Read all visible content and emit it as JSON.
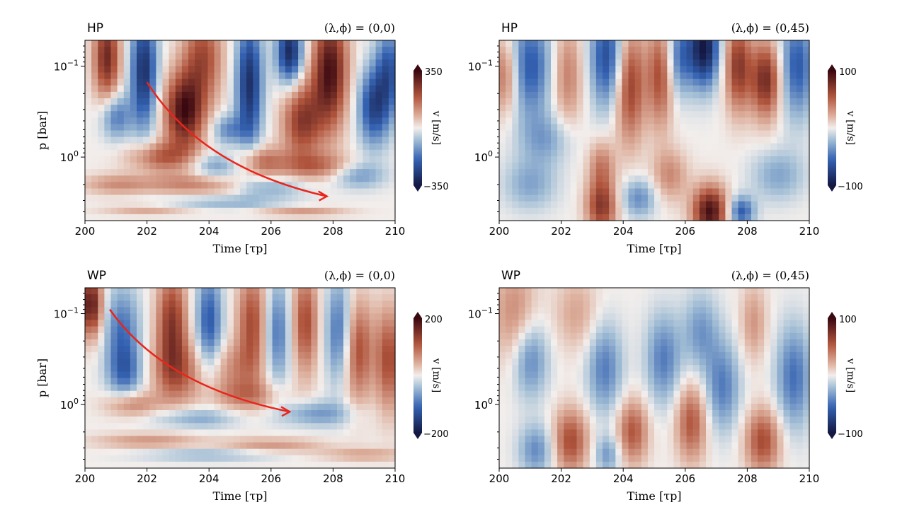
{
  "chart_data": [
    {
      "type": "heatmap",
      "model": "HP",
      "location": "(λ,ϕ) = (0,0)",
      "xlabel": "Time [τp]",
      "ylabel": "p [bar]",
      "xlim": [
        200,
        210
      ],
      "ylim": [
        0.052,
        5.0
      ],
      "yscale": "log",
      "xticks": [
        "200",
        "202",
        "204",
        "206",
        "208",
        "210"
      ],
      "yticks": [
        "10^-1",
        "10^0"
      ],
      "colorbar": {
        "label": "v [m/s]",
        "min": -350,
        "max": 350,
        "ticks": [
          "350",
          "−350"
        ]
      },
      "arrow": {
        "from": [
          202.0,
          0.15
        ],
        "to": [
          207.8,
          2.7
        ]
      },
      "features": [
        [
          200.7,
          -1.1,
          0.8,
          0.3,
          0.35
        ],
        [
          201.0,
          -0.45,
          -0.5,
          0.35,
          0.18
        ],
        [
          201.9,
          -0.95,
          -0.85,
          0.3,
          0.45
        ],
        [
          203.2,
          -0.5,
          0.95,
          0.45,
          0.3
        ],
        [
          203.8,
          -1.1,
          0.6,
          0.45,
          0.35
        ],
        [
          205.3,
          -0.8,
          -0.85,
          0.3,
          0.5
        ],
        [
          204.6,
          -0.3,
          -0.4,
          0.35,
          0.12
        ],
        [
          206.6,
          -1.15,
          -0.9,
          0.3,
          0.25
        ],
        [
          207.0,
          -0.4,
          0.7,
          0.45,
          0.3
        ],
        [
          207.9,
          -0.95,
          0.95,
          0.4,
          0.45
        ],
        [
          209.3,
          -0.55,
          -0.7,
          0.35,
          0.3
        ],
        [
          209.8,
          -0.95,
          -0.6,
          0.3,
          0.35
        ],
        [
          202.4,
          0.0,
          0.5,
          0.7,
          0.12
        ],
        [
          205.6,
          0.05,
          0.5,
          0.6,
          0.12
        ],
        [
          207.5,
          0.1,
          0.4,
          0.8,
          0.1
        ],
        [
          203.5,
          0.3,
          0.35,
          1.2,
          0.08
        ],
        [
          206.0,
          0.33,
          -0.3,
          0.8,
          0.08
        ],
        [
          201.0,
          0.3,
          0.3,
          0.8,
          0.08
        ],
        [
          204.3,
          0.1,
          -0.35,
          0.6,
          0.1
        ],
        [
          208.8,
          0.2,
          -0.35,
          0.6,
          0.1
        ],
        [
          204.5,
          0.5,
          -0.25,
          1.5,
          0.05
        ],
        [
          202.0,
          0.58,
          0.25,
          1.0,
          0.04
        ],
        [
          207.0,
          0.6,
          0.3,
          1.0,
          0.04
        ]
      ]
    },
    {
      "type": "heatmap",
      "model": "HP",
      "location": "(λ,ϕ) = (0,45)",
      "xlabel": "Time [τp]",
      "ylabel": "",
      "xlim": [
        200,
        210
      ],
      "ylim": [
        0.052,
        5.0
      ],
      "yscale": "log",
      "xticks": [
        "200",
        "202",
        "204",
        "206",
        "208",
        "210"
      ],
      "yticks": [
        "10^-1",
        "10^0"
      ],
      "colorbar": {
        "label": "v [m/s]",
        "min": -100,
        "max": 100,
        "ticks": [
          "100",
          "−100"
        ]
      },
      "features": [
        [
          200.2,
          -0.9,
          0.5,
          0.3,
          0.3
        ],
        [
          201.0,
          -1.0,
          -0.6,
          0.5,
          0.4
        ],
        [
          202.2,
          -0.9,
          0.4,
          0.35,
          0.4
        ],
        [
          203.5,
          -1.1,
          -0.7,
          0.4,
          0.4
        ],
        [
          204.2,
          -0.8,
          0.7,
          0.35,
          0.45
        ],
        [
          205.2,
          -0.9,
          0.6,
          0.3,
          0.4
        ],
        [
          205.8,
          -1.1,
          -0.5,
          0.3,
          0.3
        ],
        [
          206.6,
          -1.2,
          -1.0,
          0.35,
          0.3
        ],
        [
          207.7,
          -1.0,
          0.7,
          0.3,
          0.35
        ],
        [
          208.6,
          -0.85,
          0.8,
          0.35,
          0.3
        ],
        [
          209.6,
          -1.0,
          -0.6,
          0.4,
          0.4
        ],
        [
          201.5,
          -0.2,
          -0.3,
          0.6,
          0.2
        ],
        [
          203.3,
          0.1,
          0.4,
          0.3,
          0.2
        ],
        [
          203.3,
          0.55,
          0.7,
          0.35,
          0.2
        ],
        [
          206.8,
          0.6,
          0.95,
          0.4,
          0.2
        ],
        [
          205.5,
          0.2,
          0.35,
          0.4,
          0.2
        ],
        [
          207.8,
          0.6,
          -0.6,
          0.3,
          0.12
        ],
        [
          204.5,
          0.45,
          -0.4,
          0.4,
          0.15
        ],
        [
          209.0,
          0.2,
          -0.3,
          0.6,
          0.2
        ],
        [
          201.0,
          0.3,
          -0.3,
          0.6,
          0.2
        ]
      ]
    },
    {
      "type": "heatmap",
      "model": "WP",
      "location": "(λ,ϕ) = (0,0)",
      "xlabel": "Time [τp]",
      "ylabel": "p [bar]",
      "xlim": [
        200,
        210
      ],
      "ylim": [
        0.052,
        5.0
      ],
      "yscale": "log",
      "xticks": [
        "200",
        "202",
        "204",
        "206",
        "208",
        "210"
      ],
      "yticks": [
        "10^-1",
        "10^0"
      ],
      "colorbar": {
        "label": "v [m/s]",
        "min": -200,
        "max": 200,
        "ticks": [
          "200",
          "−200"
        ]
      },
      "arrow": {
        "from": [
          200.8,
          0.09
        ],
        "to": [
          206.6,
          1.2
        ]
      },
      "features": [
        [
          200.2,
          -1.1,
          0.9,
          0.25,
          0.25
        ],
        [
          201.2,
          -0.8,
          -0.5,
          0.4,
          0.35
        ],
        [
          201.3,
          -0.35,
          -0.4,
          0.4,
          0.2
        ],
        [
          202.8,
          -0.9,
          0.7,
          0.35,
          0.4
        ],
        [
          203.0,
          -0.35,
          0.45,
          0.6,
          0.25
        ],
        [
          204.0,
          -0.9,
          -0.6,
          0.3,
          0.4
        ],
        [
          205.4,
          -0.9,
          0.6,
          0.35,
          0.4
        ],
        [
          204.8,
          -0.4,
          0.3,
          0.6,
          0.2
        ],
        [
          206.2,
          -0.8,
          -0.5,
          0.3,
          0.4
        ],
        [
          207.1,
          -0.9,
          0.6,
          0.3,
          0.4
        ],
        [
          208.2,
          -0.8,
          -0.55,
          0.3,
          0.4
        ],
        [
          208.8,
          -0.6,
          0.6,
          0.35,
          0.4
        ],
        [
          209.8,
          -0.5,
          0.6,
          0.3,
          0.4
        ],
        [
          205.2,
          -0.1,
          0.35,
          0.8,
          0.12
        ],
        [
          201.5,
          0.0,
          0.4,
          0.6,
          0.1
        ],
        [
          203.5,
          0.15,
          -0.3,
          1.0,
          0.08
        ],
        [
          207.5,
          0.1,
          -0.35,
          0.8,
          0.1
        ],
        [
          202.0,
          0.4,
          0.3,
          1.2,
          0.06
        ],
        [
          206.0,
          0.45,
          0.3,
          1.2,
          0.06
        ],
        [
          204.0,
          0.55,
          -0.25,
          1.5,
          0.05
        ],
        [
          209.0,
          0.55,
          0.25,
          1.0,
          0.05
        ]
      ]
    },
    {
      "type": "heatmap",
      "model": "WP",
      "location": "(λ,ϕ) = (0,45)",
      "xlabel": "Time [τp]",
      "ylabel": "",
      "xlim": [
        200,
        210
      ],
      "ylim": [
        0.052,
        5.0
      ],
      "yscale": "log",
      "xticks": [
        "200",
        "202",
        "204",
        "206",
        "208",
        "210"
      ],
      "yticks": [
        "10^-1",
        "10^0"
      ],
      "colorbar": {
        "label": "v [m/s]",
        "min": -100,
        "max": 100,
        "ticks": [
          "100",
          "−100"
        ]
      },
      "features": [
        [
          200.5,
          -1.0,
          0.35,
          0.5,
          0.4
        ],
        [
          201.0,
          -0.5,
          -0.45,
          0.4,
          0.3
        ],
        [
          201.2,
          0.5,
          -0.4,
          0.4,
          0.2
        ],
        [
          202.3,
          0.4,
          0.6,
          0.4,
          0.25
        ],
        [
          202.5,
          -1.0,
          0.25,
          0.5,
          0.3
        ],
        [
          203.4,
          -0.4,
          -0.45,
          0.4,
          0.35
        ],
        [
          203.5,
          0.55,
          -0.35,
          0.3,
          0.15
        ],
        [
          204.3,
          0.3,
          0.55,
          0.35,
          0.25
        ],
        [
          205.3,
          -0.5,
          -0.45,
          0.4,
          0.35
        ],
        [
          206.2,
          0.2,
          0.55,
          0.35,
          0.3
        ],
        [
          206.5,
          -0.8,
          -0.35,
          0.4,
          0.3
        ],
        [
          207.2,
          -0.2,
          -0.45,
          0.4,
          0.35
        ],
        [
          208.5,
          0.4,
          0.6,
          0.4,
          0.25
        ],
        [
          208.2,
          -0.9,
          0.3,
          0.3,
          0.3
        ],
        [
          209.5,
          -0.3,
          -0.5,
          0.4,
          0.4
        ]
      ]
    }
  ]
}
